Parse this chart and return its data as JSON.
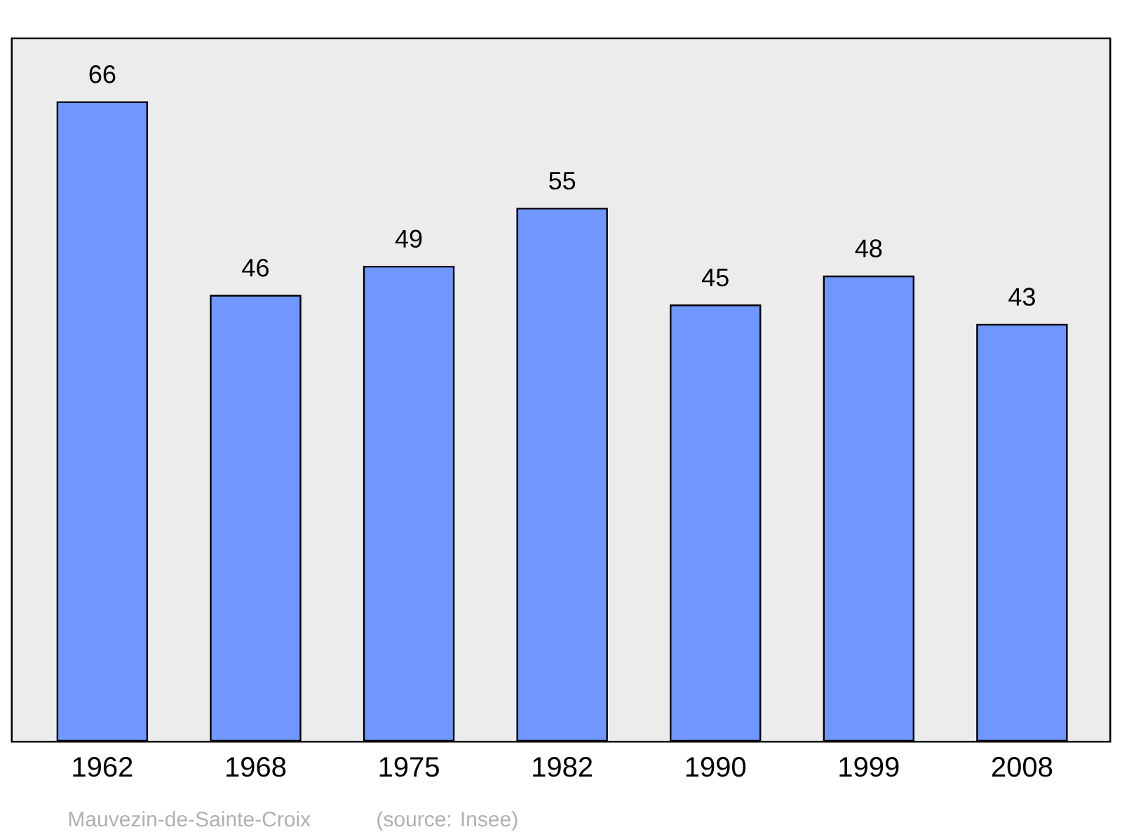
{
  "chart_data": {
    "type": "bar",
    "categories": [
      "1962",
      "1968",
      "1975",
      "1982",
      "1990",
      "1999",
      "2008"
    ],
    "values": [
      66,
      46,
      49,
      55,
      45,
      48,
      43
    ],
    "color": "#7096ff",
    "ylim": [
      0,
      72.5
    ],
    "data_labels": true,
    "tick_labels": "x",
    "annotations": [
      "Mauvezin-de-Sainte-Croix",
      "(source: Insee)"
    ]
  }
}
